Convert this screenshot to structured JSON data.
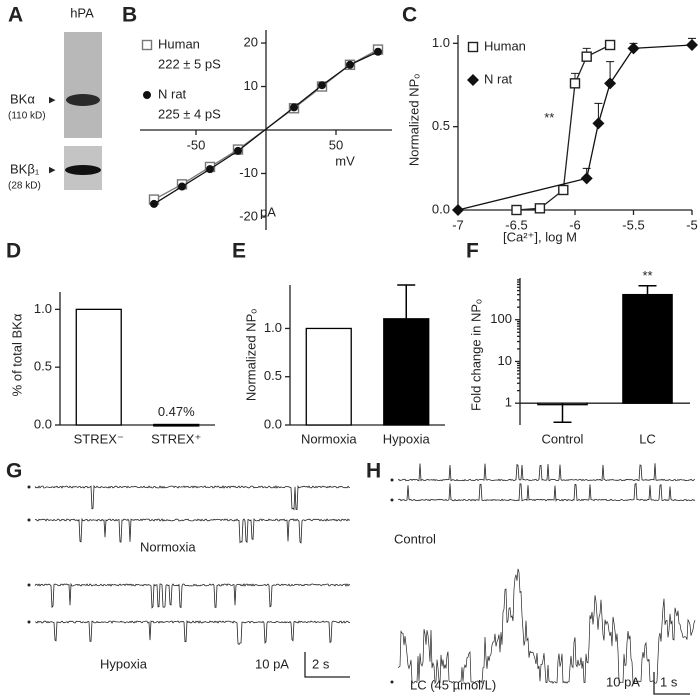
{
  "chart_data": [
    {
      "type": "scatter",
      "panel": "B",
      "x_label": "mV",
      "y_label": "pA",
      "xlim": [
        -90,
        90
      ],
      "ylim": [
        -23,
        23
      ],
      "xticks": [
        -50,
        50
      ],
      "yticks": [
        -20,
        -10,
        10,
        20
      ],
      "series": [
        {
          "name": "Human",
          "conductance": "222 ± 5 pS",
          "marker": "square-open",
          "color": "#777",
          "x": [
            -80,
            -60,
            -40,
            -20,
            20,
            40,
            60,
            80
          ],
          "values": [
            -16,
            -12.5,
            -8.5,
            -4.5,
            5,
            10,
            15,
            18.5
          ]
        },
        {
          "name": "N rat",
          "conductance": "225 ± 4 pS",
          "marker": "circle",
          "color": "#111",
          "x": [
            -80,
            -60,
            -40,
            -20,
            20,
            40,
            60,
            80
          ],
          "values": [
            -17,
            -13,
            -9,
            -4.8,
            5.2,
            10.3,
            15,
            18
          ]
        }
      ]
    },
    {
      "type": "scatter",
      "panel": "C",
      "x_label": "[Ca²⁺], log M",
      "y_label": "Normalized NPₒ",
      "annotation": "**",
      "xlim": [
        -7,
        -5
      ],
      "ylim": [
        0,
        1.05
      ],
      "xticks": [
        -7,
        -6.5,
        -6,
        -5.5,
        -5
      ],
      "yticks": [
        {
          "value": 0,
          "label": "0.0"
        },
        {
          "value": 0.5,
          "label": "0.5"
        },
        {
          "value": 1,
          "label": "1.0"
        }
      ],
      "series": [
        {
          "name": "Human",
          "marker": "square-open",
          "color": "#222",
          "x": [
            -6.5,
            -6.3,
            -6.1,
            -6.0,
            -5.9,
            -5.7
          ],
          "values": [
            0,
            0.01,
            0.12,
            0.76,
            0.92,
            0.99
          ],
          "errors": [
            null,
            null,
            null,
            0.06,
            0.05,
            0.02
          ]
        },
        {
          "name": "N rat",
          "marker": "diamond",
          "color": "#111",
          "x": [
            -7,
            -5.9,
            -5.8,
            -5.7,
            -5.5,
            -5
          ],
          "values": [
            0,
            0.19,
            0.52,
            0.76,
            0.97,
            0.99
          ],
          "errors": [
            null,
            0.06,
            0.12,
            0.13,
            0.03,
            0.04
          ]
        }
      ]
    },
    {
      "type": "bar",
      "panel": "D",
      "y_label": "% of total BKα",
      "categories": [
        "STREX⁻",
        "STREX⁺"
      ],
      "values": [
        1.0,
        0.0047
      ],
      "value_labels": [
        null,
        "0.47%"
      ],
      "colors": [
        "#ffffff",
        "#000000"
      ],
      "ylim": [
        0,
        1.15
      ],
      "yticks": [
        {
          "value": 0,
          "label": "0.0"
        },
        {
          "value": 0.5,
          "label": "0.5"
        },
        {
          "value": 1,
          "label": "1.0"
        }
      ]
    },
    {
      "type": "bar",
      "panel": "E",
      "y_label": "Normalized NPₒ",
      "categories": [
        "Normoxia",
        "Hypoxia"
      ],
      "values": [
        1.0,
        1.1
      ],
      "errors": [
        null,
        0.35
      ],
      "colors": [
        "#ffffff",
        "#000000"
      ],
      "ylim": [
        0,
        1.45
      ],
      "yticks": [
        {
          "value": 0,
          "label": "0.0"
        },
        {
          "value": 0.5,
          "label": "0.5"
        },
        {
          "value": 1,
          "label": "1.0"
        }
      ]
    },
    {
      "type": "bar",
      "panel": "F",
      "y_label": "Fold change in NPₒ",
      "annotation": "**",
      "log_scale": true,
      "categories": [
        "Control",
        "LC"
      ],
      "values": [
        1,
        400
      ],
      "errors": [
        0.65,
        250
      ],
      "colors": [
        "#ffffff",
        "#000000"
      ],
      "ylim": [
        0.3,
        1000
      ],
      "yticks": [
        1,
        10,
        100
      ]
    }
  ],
  "panel_a": {
    "letter": "A",
    "column": "hPA",
    "bands": [
      {
        "label": "BKα",
        "size": "(110 kD)"
      },
      {
        "label": "BKβ₁",
        "size": "(28 kD)"
      }
    ]
  },
  "panel_g": {
    "letter": "G",
    "conditions": [
      "Normoxia",
      "Hypoxia"
    ],
    "scale": [
      "10 pA",
      "2 s"
    ]
  },
  "panel_h": {
    "letter": "H",
    "conditions": [
      "Control",
      "LC (45 µmol/L)"
    ],
    "scale": [
      "10 pA",
      "1 s"
    ]
  }
}
